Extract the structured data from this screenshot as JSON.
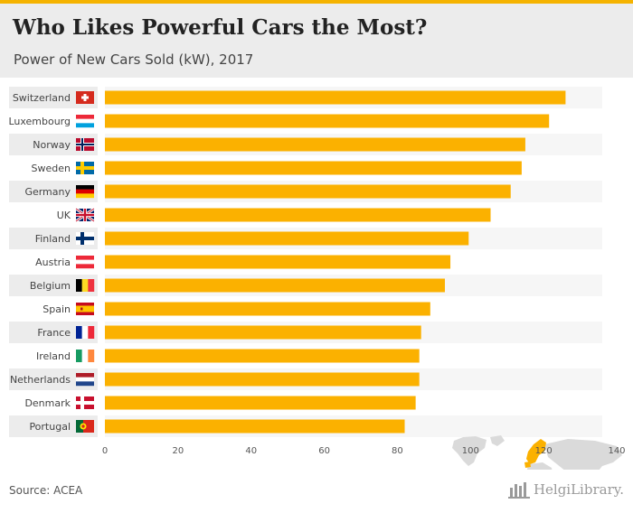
{
  "header": {
    "title": "Who Likes Powerful Cars the Most?",
    "subtitle": "Power of New Cars Sold (kW), 2017"
  },
  "footer": {
    "source": "Source: ACEA",
    "brand": "HelgiLibrary."
  },
  "colors": {
    "bar": "#fbb100",
    "band": "#ececec",
    "accent_bar": "#f5b300",
    "map_land": "#dadada",
    "map_highlight": "#fbb100"
  },
  "flag_icons": [
    "switzerland-flag-icon",
    "luxembourg-flag-icon",
    "norway-flag-icon",
    "sweden-flag-icon",
    "germany-flag-icon",
    "uk-flag-icon",
    "finland-flag-icon",
    "austria-flag-icon",
    "belgium-flag-icon",
    "spain-flag-icon",
    "france-flag-icon",
    "ireland-flag-icon",
    "netherlands-flag-icon",
    "denmark-flag-icon",
    "portugal-flag-icon"
  ],
  "chart_data": {
    "type": "bar",
    "orientation": "horizontal",
    "categories": [
      "Switzerland",
      "Luxembourg",
      "Norway",
      "Sweden",
      "Germany",
      "UK",
      "Finland",
      "Austria",
      "Belgium",
      "Spain",
      "France",
      "Ireland",
      "Netherlands",
      "Denmark",
      "Portugal"
    ],
    "values": [
      126,
      121.5,
      115,
      114,
      111,
      105.5,
      99.5,
      94.5,
      93,
      89,
      86.5,
      86,
      86,
      85,
      82
    ],
    "xlim": [
      0,
      140
    ],
    "xticks": [
      0,
      20,
      40,
      60,
      80,
      100,
      120,
      140
    ],
    "title": "Who Likes Powerful Cars the Most?",
    "subtitle": "Power of New Cars Sold (kW), 2017",
    "xlabel": "",
    "ylabel": "",
    "grid": false,
    "legend": "none"
  }
}
